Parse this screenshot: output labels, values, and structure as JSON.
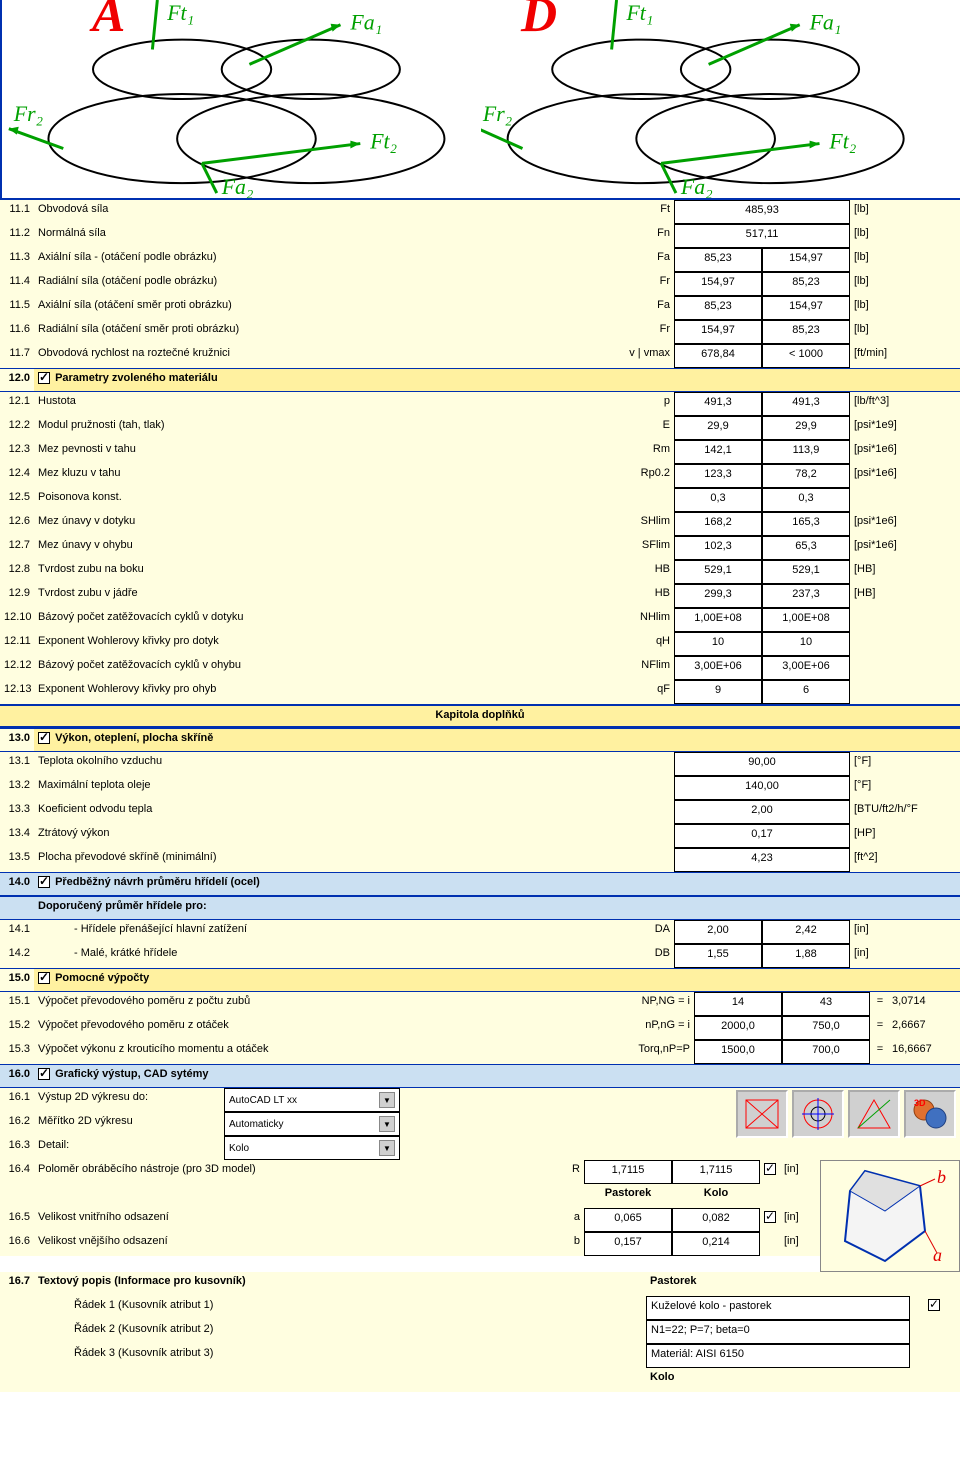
{
  "diagram": {
    "letters": [
      "A",
      "D"
    ],
    "force_labels": [
      "Ft₁",
      "Fa₁",
      "Fr₂",
      "Ft₂",
      "Fa₂"
    ],
    "label_color": "#00a000",
    "arrow_color": "#00a000",
    "ellipse_stroke": "#000000"
  },
  "section11": [
    {
      "n": "11.1",
      "label": "Obvodová síla",
      "sym": "Ft",
      "v1": "",
      "v2": "485,93",
      "unit": "[lb]",
      "wide": true
    },
    {
      "n": "11.2",
      "label": "Normálná síla",
      "sym": "Fn",
      "v1": "",
      "v2": "517,11",
      "unit": "[lb]",
      "wide": true
    },
    {
      "n": "11.3",
      "label": "Axiální síla - (otáčení podle obrázku)",
      "sym": "Fa",
      "v1": "85,23",
      "v2": "154,97",
      "unit": "[lb]"
    },
    {
      "n": "11.4",
      "label": "Radiální síla (otáčení podle obrázku)",
      "sym": "Fr",
      "v1": "154,97",
      "v2": "85,23",
      "unit": "[lb]"
    },
    {
      "n": "11.5",
      "label": "Axiální síla (otáčení směr proti obrázku)",
      "sym": "Fa",
      "v1": "85,23",
      "v2": "154,97",
      "unit": "[lb]"
    },
    {
      "n": "11.6",
      "label": "Radiální síla (otáčení směr proti obrázku)",
      "sym": "Fr",
      "v1": "154,97",
      "v2": "85,23",
      "unit": "[lb]"
    },
    {
      "n": "11.7",
      "label": "Obvodová rychlost na roztečné kružnici",
      "sym": "v | vmax",
      "v1": "678,84",
      "v2": "< 1000",
      "unit": "[ft/min]"
    }
  ],
  "section12": {
    "hdr_n": "12.0",
    "hdr_label": "Parametry zvoleného materiálu",
    "rows": [
      {
        "n": "12.1",
        "label": "Hustota",
        "sym": "p",
        "v1": "491,3",
        "v2": "491,3",
        "unit": "[lb/ft^3]"
      },
      {
        "n": "12.2",
        "label": "Modul pružnosti (tah, tlak)",
        "sym": "E",
        "v1": "29,9",
        "v2": "29,9",
        "unit": "[psi*1e9]"
      },
      {
        "n": "12.3",
        "label": "Mez pevnosti v tahu",
        "sym": "Rm",
        "v1": "142,1",
        "v2": "113,9",
        "unit": "[psi*1e6]"
      },
      {
        "n": "12.4",
        "label": "Mez kluzu v tahu",
        "sym": "Rp0.2",
        "v1": "123,3",
        "v2": "78,2",
        "unit": "[psi*1e6]"
      },
      {
        "n": "12.5",
        "label": "Poisonova konst.",
        "sym": "",
        "v1": "0,3",
        "v2": "0,3",
        "unit": ""
      },
      {
        "n": "12.6",
        "label": "Mez únavy v dotyku",
        "sym": "SHlim",
        "v1": "168,2",
        "v2": "165,3",
        "unit": "[psi*1e6]"
      },
      {
        "n": "12.7",
        "label": "Mez únavy v ohybu",
        "sym": "SFlim",
        "v1": "102,3",
        "v2": "65,3",
        "unit": "[psi*1e6]"
      },
      {
        "n": "12.8",
        "label": "Tvrdost zubu na boku",
        "sym": "HB",
        "v1": "529,1",
        "v2": "529,1",
        "unit": "[HB]"
      },
      {
        "n": "12.9",
        "label": "Tvrdost zubu v jádře",
        "sym": "HB",
        "v1": "299,3",
        "v2": "237,3",
        "unit": "[HB]"
      },
      {
        "n": "12.10",
        "label": "Bázový počet zatěžovacích cyklů v dotyku",
        "sym": "NHlim",
        "v1": "1,00E+08",
        "v2": "1,00E+08",
        "unit": ""
      },
      {
        "n": "12.11",
        "label": "Exponent Wohlerovy křivky pro dotyk",
        "sym": "qH",
        "v1": "10",
        "v2": "10",
        "unit": ""
      },
      {
        "n": "12.12",
        "label": "Bázový počet zatěžovacích cyklů v ohybu",
        "sym": "NFlim",
        "v1": "3,00E+06",
        "v2": "3,00E+06",
        "unit": ""
      },
      {
        "n": "12.13",
        "label": "Exponent Wohlerovy křivky pro ohyb",
        "sym": "qF",
        "v1": "9",
        "v2": "6",
        "unit": ""
      }
    ]
  },
  "chapter": "Kapitola doplňků",
  "section13": {
    "hdr_n": "13.0",
    "hdr_label": "Výkon, oteplení, plocha skříně",
    "rows": [
      {
        "n": "13.1",
        "label": "Teplota okolního vzduchu",
        "v": "90,00",
        "unit": "[°F]"
      },
      {
        "n": "13.2",
        "label": "Maximální teplota oleje",
        "v": "140,00",
        "unit": "[°F]"
      },
      {
        "n": "13.3",
        "label": "Koeficient odvodu tepla",
        "v": "2,00",
        "unit": "[BTU/ft2/h/°F"
      },
      {
        "n": "13.4",
        "label": "Ztrátový výkon",
        "v": "0,17",
        "unit": "[HP]"
      },
      {
        "n": "13.5",
        "label": "Plocha převodové skříně (minimální)",
        "v": "4,23",
        "unit": "[ft^2]"
      }
    ]
  },
  "section14": {
    "hdr_n": "14.0",
    "hdr_label": "Předběžný návrh průměru hřídelí (ocel)",
    "sub": "Doporučený průměr hřídele pro:",
    "rows": [
      {
        "n": "14.1",
        "label": "- Hřídele přenášející hlavní zatížení",
        "sym": "DA",
        "v1": "2,00",
        "v2": "2,42",
        "unit": "[in]"
      },
      {
        "n": "14.2",
        "label": "- Malé, krátké hřídele",
        "sym": "DB",
        "v1": "1,55",
        "v2": "1,88",
        "unit": "[in]"
      }
    ]
  },
  "section15": {
    "hdr_n": "15.0",
    "hdr_label": "Pomocné výpočty",
    "rows": [
      {
        "n": "15.1",
        "label": "Výpočet převodového poměru z počtu zubů",
        "sym": "NP,NG = i",
        "v1": "14",
        "v2": "43",
        "res": "3,0714"
      },
      {
        "n": "15.2",
        "label": "Výpočet převodového poměru z otáček",
        "sym": "nP,nG = i",
        "v1": "2000,0",
        "v2": "750,0",
        "res": "2,6667"
      },
      {
        "n": "15.3",
        "label": "Výpočet výkonu z krouticího momentu a otáček",
        "sym": "Torq,nP=P",
        "v1": "1500,0",
        "v2": "700,0",
        "res": "16,6667"
      }
    ]
  },
  "section16": {
    "hdr_n": "16.0",
    "hdr_label": "Grafický výstup, CAD sytémy",
    "r1": {
      "n": "16.1",
      "label": "Výstup 2D výkresu do:",
      "dd": "AutoCAD LT xx"
    },
    "r2": {
      "n": "16.2",
      "label": "Měřítko 2D výkresu",
      "dd": "Automaticky"
    },
    "r3": {
      "n": "16.3",
      "label": "Detail:",
      "dd": "Kolo"
    },
    "r4": {
      "n": "16.4",
      "label": "Poloměr obráběcího nástroje (pro 3D model)",
      "sym": "R",
      "v1": "1,7115",
      "v2": "1,7115",
      "unit": "[in]"
    },
    "colhdr": {
      "c1": "Pastorek",
      "c2": "Kolo"
    },
    "r5": {
      "n": "16.5",
      "label": "Velikost vnitřního odsazení",
      "sym": "a",
      "v1": "0,065",
      "v2": "0,082",
      "unit": "[in]"
    },
    "r6": {
      "n": "16.6",
      "label": "Velikost vnějšího odsazení",
      "sym": "b",
      "v1": "0,157",
      "v2": "0,214",
      "unit": "[in]"
    },
    "r7": {
      "n": "16.7",
      "label": "Textový popis (Informace pro kusovník)",
      "col": "Pastorek"
    },
    "lines": [
      {
        "label": "Řádek 1 (Kusovník atribut 1)",
        "val": "Kuželové kolo - pastorek"
      },
      {
        "label": "Řádek 2 (Kusovník atribut 2)",
        "val": "N1=22; P=7; beta=0"
      },
      {
        "label": "Řádek 3 (Kusovník atribut 3)",
        "val": "Materiál: AISI 6150"
      }
    ],
    "footer": "Kolo"
  },
  "colors": {
    "hdr_bg": "#fff1a0",
    "row_bg": "#fffee0",
    "blue_bg": "#cbe0f2",
    "border": "#0030b0"
  }
}
